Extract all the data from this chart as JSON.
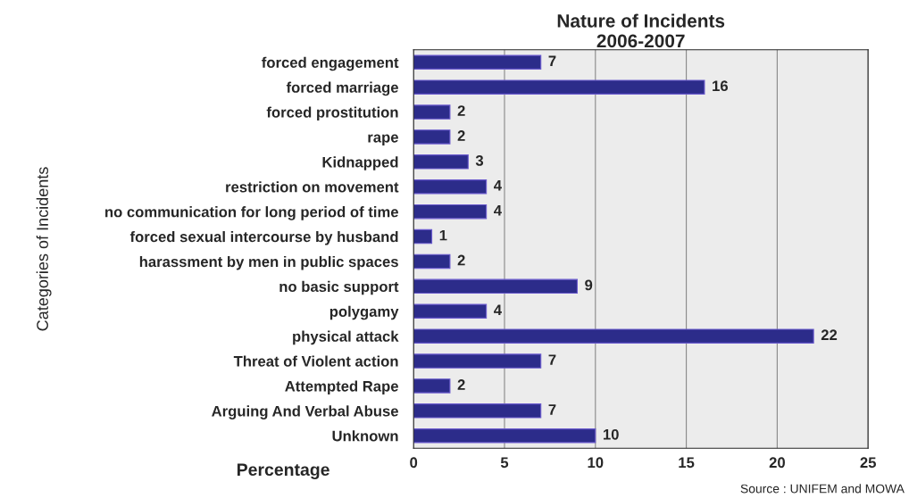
{
  "chart_data": {
    "type": "bar",
    "orientation": "horizontal",
    "title": "Nature of Incidents\n2006-2007",
    "xlabel": "Percentage",
    "ylabel": "Categories of Incidents",
    "categories": [
      "forced engagement",
      "forced marriage",
      "forced prostitution",
      "rape",
      "Kidnapped",
      "restriction on movement",
      "no communication for long period of time",
      "forced sexual intercourse by husband",
      "harassment by men in public spaces",
      "no basic support",
      "polygamy",
      "physical attack",
      "Threat of Violent action",
      "Attempted Rape",
      "Arguing And Verbal Abuse",
      "Unknown"
    ],
    "values": [
      7,
      16,
      2,
      2,
      3,
      4,
      4,
      1,
      2,
      9,
      4,
      22,
      7,
      2,
      7,
      10
    ],
    "color": "#1c1c9a",
    "xlim": [
      0,
      25
    ],
    "xticks": [
      0,
      5,
      10,
      15,
      20,
      25
    ],
    "grid": "x",
    "data_labels": true,
    "legend": false,
    "annotations": [
      "Source : UNIFEM and MOWA"
    ]
  }
}
